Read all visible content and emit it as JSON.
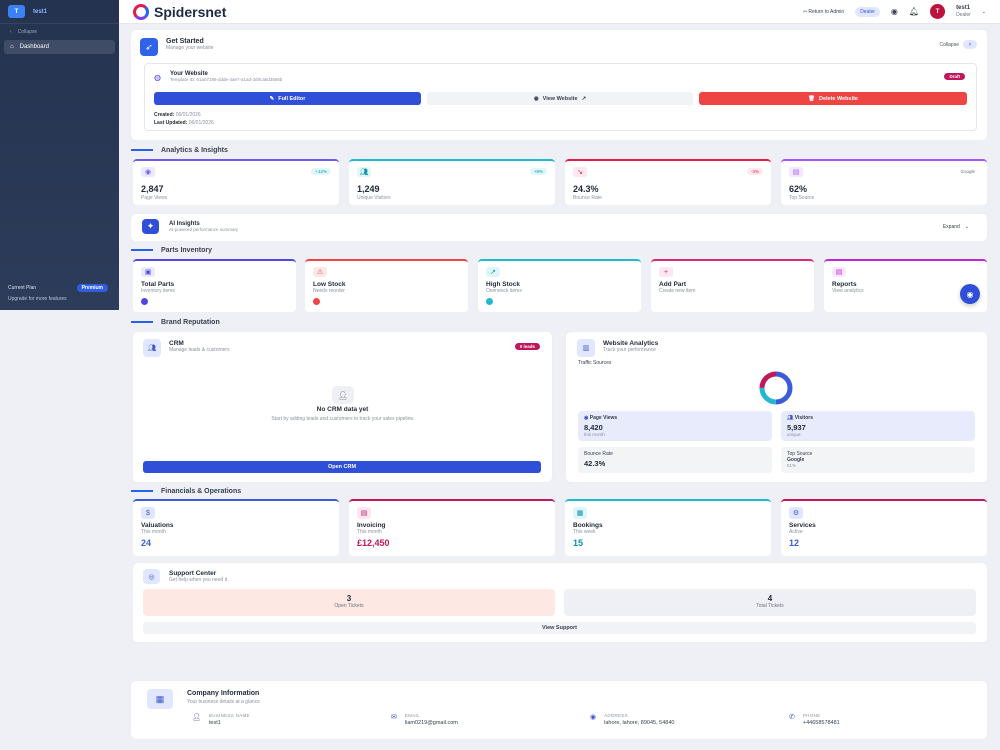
{
  "sidebar": {
    "logo": "T",
    "user": "test1",
    "collapse": "Collapse",
    "items": [
      {
        "label": "Dashboard"
      }
    ],
    "plan_label": "Current Plan",
    "plan_badge": "Premium",
    "upgrade": "Upgrade for more features"
  },
  "topbar": {
    "brand": "Spidersnet",
    "return_admin": "Return to Admin",
    "role_badge": "Dealer",
    "avatar": "T",
    "user_name": "test1",
    "user_role": "Dealer"
  },
  "get_started": {
    "title": "Get Started",
    "subtitle": "Manage your website",
    "collapse": "Collapse",
    "site_title": "Your Website",
    "template_id": "Template ID: 61a07186-ddde-4ae7-a1ad-3d0ca8d3566b",
    "status_badge": "Draft",
    "full_editor": "Full Editor",
    "view_website": "View Website",
    "delete_website": "Delete Website",
    "created_label": "Created:",
    "created_value": "06/01/2026",
    "updated_label": "Last Updated:",
    "updated_value": "06/01/2026"
  },
  "sections": {
    "analytics": "Analytics & Insights",
    "parts": "Parts Inventory",
    "brand": "Brand Reputation",
    "financials": "Financials & Operations"
  },
  "stats": [
    {
      "value": "2,847",
      "label": "Page Views",
      "badge": "+12%",
      "color": "#6d5ce8"
    },
    {
      "value": "1,249",
      "label": "Unique Visitors",
      "badge": "+8%",
      "color": "#22b8cf"
    },
    {
      "value": "24.3%",
      "label": "Bounce Rate",
      "badge": "-3%",
      "color": "#e11d48"
    },
    {
      "value": "62%",
      "label": "Top Source",
      "badge": "Google",
      "color": "#a855f7"
    }
  ],
  "ai_insights": {
    "title": "AI Insights",
    "subtitle": "AI-powered performance summary",
    "expand": "Expand"
  },
  "parts": [
    {
      "name": "Total Parts",
      "sub": "Inventory items",
      "color": "#4f46e5"
    },
    {
      "name": "Low Stock",
      "sub": "Needs reorder",
      "color": "#ef4444"
    },
    {
      "name": "High Stock",
      "sub": "Overstock items",
      "color": "#22b8cf"
    },
    {
      "name": "Add Part",
      "sub": "Create new item",
      "color": "#db2777"
    },
    {
      "name": "Reports",
      "sub": "View analytics",
      "color": "#c026d3"
    }
  ],
  "crm": {
    "title": "CRM",
    "subtitle": "Manage leads & customers",
    "badge": "0 leads",
    "empty_title": "No CRM data yet",
    "empty_text": "Start by adding leads and customers to track your sales pipeline.",
    "button": "Open CRM"
  },
  "web_analytics": {
    "title": "Website Analytics",
    "subtitle": "Track your performance",
    "traffic_label": "Traffic Sources",
    "page_views_label": "Page Views",
    "page_views_value": "8,420",
    "page_views_sub": "this month",
    "visitors_label": "Visitors",
    "visitors_value": "5,937",
    "visitors_sub": "unique",
    "bounce_label": "Bounce Rate",
    "bounce_value": "42.3%",
    "top_label": "Top Source",
    "top_value": "Google",
    "top_sub": "51%"
  },
  "financials": [
    {
      "name": "Valuations",
      "sub": "This month",
      "value": "24",
      "color": "#3b5bdb"
    },
    {
      "name": "Invoicing",
      "sub": "This month",
      "value": "£12,450",
      "color": "#c2185b"
    },
    {
      "name": "Bookings",
      "sub": "This week",
      "value": "15",
      "color": "#22b8cf"
    },
    {
      "name": "Services",
      "sub": "Active",
      "value": "12",
      "color": "#3b5bdb"
    }
  ],
  "support": {
    "title": "Support Center",
    "subtitle": "Get help when you need it",
    "open_value": "3",
    "open_label": "Open Tickets",
    "total_value": "4",
    "total_label": "Total Tickets",
    "view": "View Support"
  },
  "company": {
    "title": "Company Information",
    "subtitle": "Your business details at a glance",
    "business_label": "BUSINESS NAME",
    "business_value": "test1",
    "email_label": "EMAIL",
    "email_value": "liam0219@gmail.com",
    "address_label": "ADDRESS",
    "address_value": "lahore, lahore, 89045, 54840",
    "phone_label": "PHONE",
    "phone_value": "+44658578481"
  },
  "colors": {
    "primary": "#2f4fd8",
    "danger": "#ef4444",
    "brand_pink": "#be185d"
  }
}
